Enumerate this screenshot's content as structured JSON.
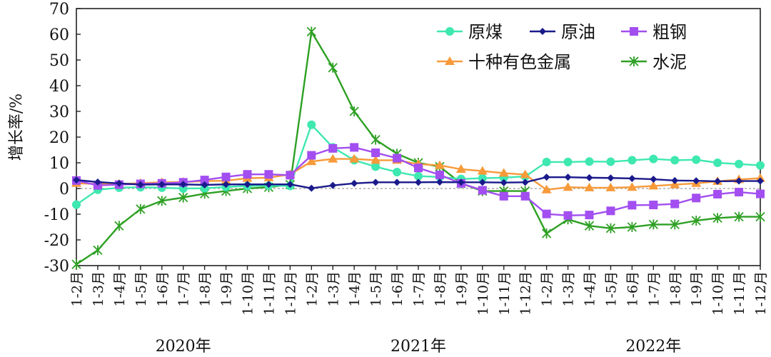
{
  "chart_data": {
    "type": "line",
    "ylabel": "增长率/%",
    "ylim": [
      -30,
      70
    ],
    "yticks": [
      -30,
      -20,
      -10,
      0,
      10,
      20,
      30,
      40,
      50,
      60,
      70
    ],
    "x": [
      "1-2月",
      "1-3月",
      "1-4月",
      "1-5月",
      "1-6月",
      "1-7月",
      "1-8月",
      "1-9月",
      "1-10月",
      "1-11月",
      "1-12月",
      "1-2月",
      "1-3月",
      "1-4月",
      "1-5月",
      "1-6月",
      "1-7月",
      "1-8月",
      "1-9月",
      "1-10月",
      "1-11月",
      "1-12月",
      "1-2月",
      "1-3月",
      "1-4月",
      "1-5月",
      "1-6月",
      "1-7月",
      "1-8月",
      "1-9月",
      "1-10月",
      "1-11月",
      "1-12月"
    ],
    "year_labels": [
      {
        "label": "2020年",
        "center_index": 5
      },
      {
        "label": "2021年",
        "center_index": 16
      },
      {
        "label": "2022年",
        "center_index": 27
      }
    ],
    "legend_position": "top-right",
    "series": [
      {
        "name": "原煤",
        "color": "#3ee8b0",
        "marker": "circle",
        "values": [
          -6.3,
          -0.5,
          0.3,
          0.5,
          0.3,
          0.0,
          0.1,
          0.6,
          1.0,
          1.1,
          1.0,
          24.8,
          16.0,
          11.0,
          8.5,
          6.4,
          4.8,
          4.5,
          3.7,
          4.0,
          4.2,
          4.7,
          10.3,
          10.3,
          10.5,
          10.4,
          11.0,
          11.5,
          11.0,
          11.2,
          10.0,
          9.5,
          9.0
        ]
      },
      {
        "name": "原油",
        "color": "#1a1a8c",
        "marker": "diamond",
        "values": [
          3.3,
          2.5,
          2.0,
          1.5,
          1.6,
          1.6,
          1.4,
          1.6,
          1.6,
          1.6,
          1.6,
          0.1,
          1.2,
          2.0,
          2.4,
          2.4,
          2.4,
          2.5,
          2.4,
          2.4,
          2.3,
          2.4,
          4.4,
          4.4,
          4.2,
          4.1,
          3.9,
          3.6,
          3.1,
          3.0,
          2.8,
          2.9,
          2.9
        ]
      },
      {
        "name": "粗钢",
        "color": "#a24ef0",
        "marker": "square",
        "values": [
          3.1,
          1.2,
          1.5,
          1.8,
          2.0,
          2.4,
          3.3,
          4.5,
          5.5,
          5.5,
          5.2,
          12.9,
          15.6,
          16.0,
          13.9,
          11.8,
          8.0,
          5.3,
          2.0,
          -0.7,
          -3.0,
          -3.0,
          -9.9,
          -10.5,
          -10.3,
          -8.7,
          -6.5,
          -6.4,
          -6.0,
          -3.7,
          -2.2,
          -1.4,
          -2.1
        ]
      },
      {
        "name": "十种有色金属",
        "color": "#f79a3a",
        "marker": "triangle",
        "values": [
          2.0,
          1.8,
          1.7,
          2.1,
          2.4,
          2.5,
          2.9,
          3.0,
          4.0,
          4.2,
          5.5,
          10.5,
          11.5,
          11.5,
          11.0,
          11.0,
          9.5,
          9.0,
          7.5,
          6.8,
          6.0,
          5.4,
          -0.5,
          0.5,
          0.3,
          0.3,
          0.5,
          1.0,
          1.5,
          2.0,
          2.8,
          3.5,
          4.0
        ]
      },
      {
        "name": "水泥",
        "color": "#2ea024",
        "marker": "star",
        "values": [
          -29.5,
          -24.0,
          -14.5,
          -8.0,
          -4.8,
          -3.5,
          -2.0,
          -1.0,
          0.0,
          0.5,
          1.5,
          61.0,
          47.0,
          30.0,
          19.0,
          13.5,
          10.0,
          8.5,
          2.0,
          -1.0,
          -1.0,
          -1.0,
          -17.5,
          -12.0,
          -14.5,
          -15.5,
          -15.0,
          -14.0,
          -14.0,
          -12.5,
          -11.5,
          -11.0,
          -11.0
        ]
      }
    ]
  }
}
